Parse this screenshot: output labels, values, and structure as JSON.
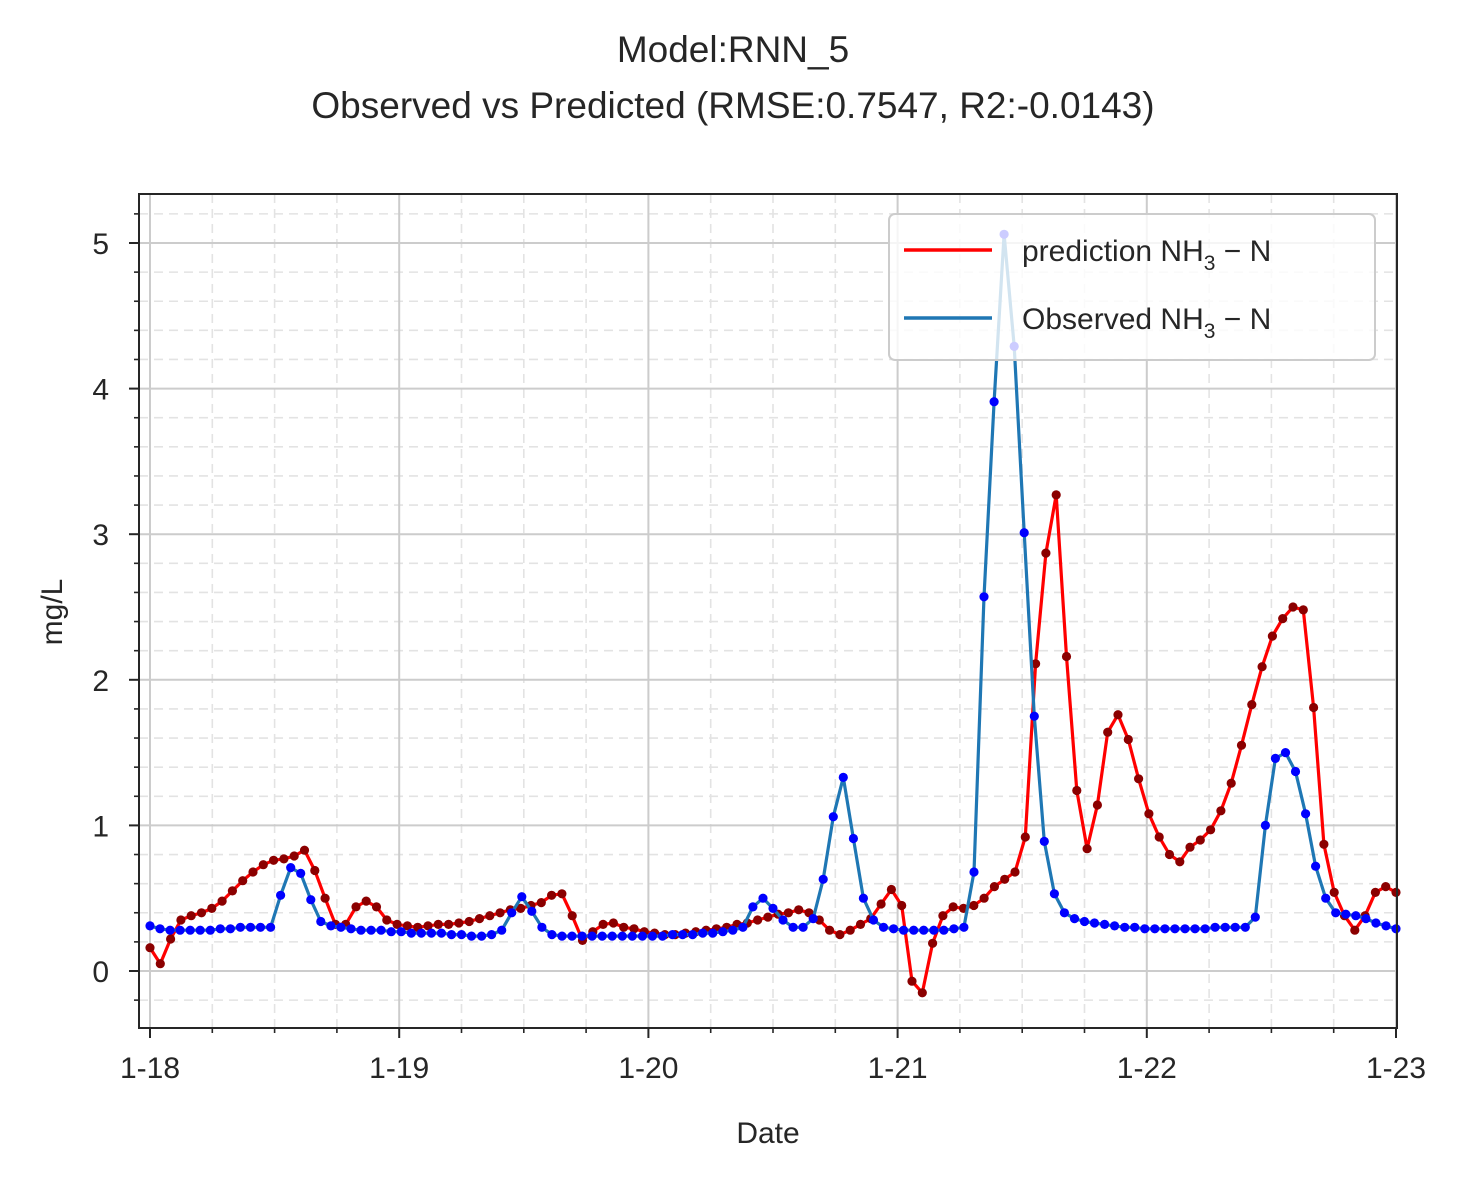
{
  "chart_data": {
    "type": "line",
    "title": "Model:RNN_5",
    "subtitle": "Observed vs Predicted (RMSE:0.7547, R2:-0.0143)",
    "xlabel": "Date",
    "ylabel": "mg/L",
    "xlim": [
      "1-18",
      "1-23"
    ],
    "ylim": [
      -0.4,
      5.3
    ],
    "x_ticks": [
      "1-18",
      "1-19",
      "1-20",
      "1-21",
      "1-22",
      "1-23"
    ],
    "y_ticks": [
      "0",
      "1",
      "2",
      "3",
      "4",
      "5"
    ],
    "grid": true,
    "legend_position": "upper-right",
    "series": [
      {
        "name": "prediction NH3 - N",
        "legend_main": "prediction NH",
        "legend_sub": "3",
        "legend_tail": " − N",
        "color": "#ff0000",
        "marker_color": "#8b0000",
        "values": [
          0.16,
          0.05,
          0.22,
          0.35,
          0.38,
          0.4,
          0.43,
          0.48,
          0.55,
          0.62,
          0.68,
          0.73,
          0.76,
          0.77,
          0.79,
          0.83,
          0.69,
          0.5,
          0.32,
          0.32,
          0.44,
          0.48,
          0.44,
          0.35,
          0.32,
          0.31,
          0.3,
          0.31,
          0.32,
          0.32,
          0.33,
          0.34,
          0.36,
          0.38,
          0.4,
          0.42,
          0.43,
          0.45,
          0.47,
          0.52,
          0.53,
          0.38,
          0.21,
          0.27,
          0.32,
          0.33,
          0.3,
          0.29,
          0.27,
          0.26,
          0.25,
          0.25,
          0.26,
          0.27,
          0.28,
          0.29,
          0.3,
          0.32,
          0.33,
          0.35,
          0.37,
          0.39,
          0.4,
          0.42,
          0.4,
          0.35,
          0.28,
          0.25,
          0.28,
          0.32,
          0.36,
          0.46,
          0.56,
          0.45,
          -0.07,
          -0.15,
          0.19,
          0.38,
          0.44,
          0.43,
          0.45,
          0.5,
          0.58,
          0.63,
          0.68,
          0.92,
          2.11,
          2.87,
          3.27,
          2.16,
          1.24,
          0.84,
          1.14,
          1.64,
          1.76,
          1.59,
          1.32,
          1.08,
          0.92,
          0.8,
          0.75,
          0.85,
          0.9,
          0.97,
          1.1,
          1.29,
          1.55,
          1.83,
          2.09,
          2.3,
          2.42,
          2.5,
          2.48,
          1.81,
          0.87,
          0.54,
          0.38,
          0.28,
          0.38,
          0.54,
          0.58,
          0.54
        ]
      },
      {
        "name": "Observed NH3 - N",
        "legend_main": "Observed NH",
        "legend_sub": "3",
        "legend_tail": " − N",
        "color": "#1f77b4",
        "marker_color": "#0000ff",
        "values": [
          0.31,
          0.29,
          0.28,
          0.28,
          0.28,
          0.28,
          0.28,
          0.29,
          0.29,
          0.3,
          0.3,
          0.3,
          0.3,
          0.52,
          0.71,
          0.67,
          0.49,
          0.34,
          0.31,
          0.3,
          0.29,
          0.28,
          0.28,
          0.28,
          0.27,
          0.27,
          0.26,
          0.26,
          0.26,
          0.26,
          0.25,
          0.25,
          0.24,
          0.24,
          0.25,
          0.28,
          0.4,
          0.51,
          0.41,
          0.3,
          0.25,
          0.24,
          0.24,
          0.24,
          0.24,
          0.24,
          0.24,
          0.24,
          0.24,
          0.24,
          0.24,
          0.24,
          0.25,
          0.25,
          0.25,
          0.26,
          0.26,
          0.27,
          0.28,
          0.3,
          0.44,
          0.5,
          0.43,
          0.35,
          0.3,
          0.3,
          0.36,
          0.63,
          1.06,
          1.33,
          0.91,
          0.5,
          0.35,
          0.3,
          0.29,
          0.28,
          0.28,
          0.28,
          0.28,
          0.28,
          0.29,
          0.3,
          0.68,
          2.57,
          3.91,
          5.06,
          4.29,
          3.01,
          1.75,
          0.89,
          0.53,
          0.4,
          0.36,
          0.34,
          0.33,
          0.32,
          0.31,
          0.3,
          0.3,
          0.29,
          0.29,
          0.29,
          0.29,
          0.29,
          0.29,
          0.29,
          0.3,
          0.3,
          0.3,
          0.3,
          0.37,
          1.0,
          1.46,
          1.5,
          1.37,
          1.08,
          0.72,
          0.5,
          0.4,
          0.39,
          0.38,
          0.36,
          0.33,
          0.31,
          0.29
        ]
      }
    ]
  }
}
